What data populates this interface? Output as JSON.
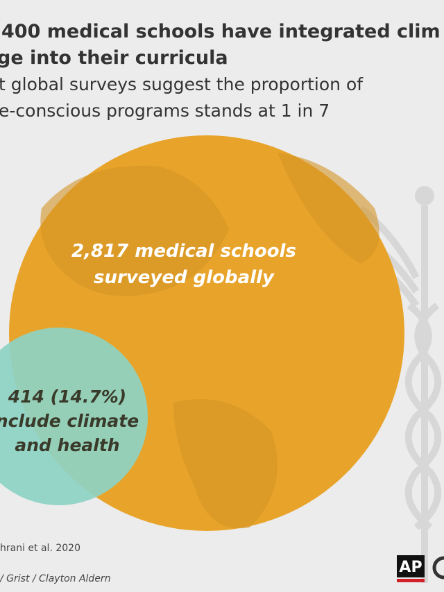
{
  "header": {
    "title_lines": [
      "400 medical schools have integrated clim",
      "ge into their curricula"
    ],
    "subtitle_lines": [
      "t global surveys suggest the proportion of",
      "e-conscious programs stands at 1 in 7"
    ]
  },
  "circles": {
    "outer": {
      "label_lines": [
        "2,817 medical schools",
        "surveyed globally"
      ]
    },
    "inner": {
      "label_lines": [
        "414 (14.7%)",
        "nclude climate",
        "and health"
      ]
    }
  },
  "footer": {
    "source": "hrani et al. 2020",
    "credit": "/ Grist / Clayton Aldern",
    "logo": "AP"
  }
}
